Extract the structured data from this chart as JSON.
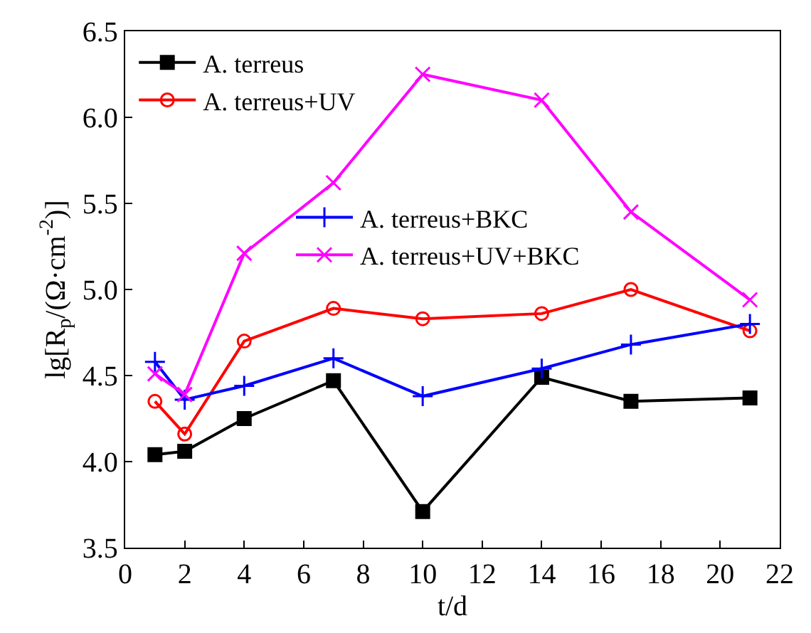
{
  "chart_data": {
    "type": "line",
    "xlabel": "t/d",
    "ylabel": "lg[R$_{p}$/(Ω·cm$^{-2}$)]",
    "x": [
      1,
      2,
      4,
      7,
      10,
      14,
      17,
      21
    ],
    "series": [
      {
        "name": "A. terreus",
        "color": "#000000",
        "marker": "square",
        "values": [
          4.04,
          4.06,
          4.25,
          4.47,
          3.71,
          4.49,
          4.35,
          4.37
        ]
      },
      {
        "name": "A. terreus+UV",
        "color": "#ff0000",
        "marker": "circle",
        "values": [
          4.35,
          4.16,
          4.7,
          4.89,
          4.83,
          4.86,
          5.0,
          4.76
        ]
      },
      {
        "name": "A. terreus+BKC",
        "color": "#0000ff",
        "marker": "cross",
        "values": [
          4.58,
          4.36,
          4.44,
          4.6,
          4.38,
          4.54,
          4.68,
          4.8
        ]
      },
      {
        "name": "A. terreus+UV+BKC",
        "color": "#ff00ff",
        "marker": "x",
        "values": [
          4.51,
          4.39,
          5.21,
          5.62,
          6.25,
          6.1,
          5.45,
          4.94
        ]
      }
    ],
    "xlim": [
      0,
      22
    ],
    "xticks": [
      0,
      2,
      4,
      6,
      8,
      10,
      12,
      14,
      16,
      18,
      20,
      22
    ],
    "ylim": [
      3.5,
      6.5
    ],
    "yticks": [
      3.5,
      {
        "value": 4,
        "label": "4.0"
      },
      4.5,
      {
        "value": 5,
        "label": "5.0"
      },
      5.5,
      {
        "value": 6,
        "label": "6.0"
      },
      6.5
    ],
    "legend": "top left"
  }
}
